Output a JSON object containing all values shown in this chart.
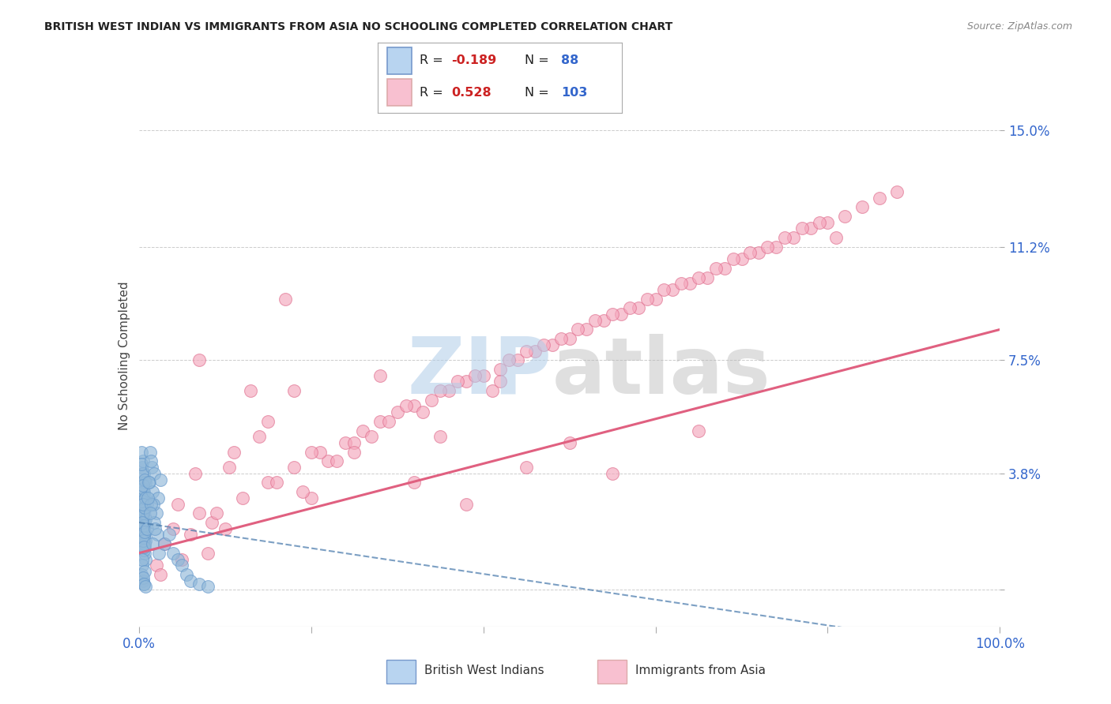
{
  "title": "BRITISH WEST INDIAN VS IMMIGRANTS FROM ASIA NO SCHOOLING COMPLETED CORRELATION CHART",
  "source": "Source: ZipAtlas.com",
  "ylabel": "No Schooling Completed",
  "xlim": [
    0,
    100
  ],
  "ylim": [
    -1.2,
    16.5
  ],
  "yticks": [
    0,
    3.8,
    7.5,
    11.2,
    15.0
  ],
  "xticks": [
    0,
    20,
    40,
    60,
    80,
    100
  ],
  "xtick_labels": [
    "0.0%",
    "",
    "",
    "",
    "",
    "100.0%"
  ],
  "ytick_labels": [
    "",
    "3.8%",
    "7.5%",
    "11.2%",
    "15.0%"
  ],
  "series1_label": "British West Indians",
  "series1_color": "#92b9d9",
  "series1_edge": "#6699cc",
  "series2_label": "Immigrants from Asia",
  "series2_color": "#f4a7bc",
  "series2_edge": "#e07090",
  "trend1_color": "#4477aa",
  "trend2_color": "#e06080",
  "watermark_zip_color": "#b0cce8",
  "watermark_atlas_color": "#b8b8b8",
  "background_color": "#ffffff",
  "title_color": "#222222",
  "axis_label_color": "#444444",
  "tick_label_color": "#3366cc",
  "grid_color": "#cccccc",
  "legend_box_color1": "#b8d4f0",
  "legend_box_color2": "#f8c0d0",
  "legend_R1_color": "#cc2222",
  "legend_R2_color": "#cc2222",
  "legend_N_color": "#3366cc",
  "series1_x": [
    0.3,
    0.5,
    0.4,
    0.6,
    0.8,
    0.5,
    0.7,
    0.4,
    0.6,
    0.9,
    0.5,
    0.3,
    0.7,
    0.6,
    0.4,
    0.8,
    0.5,
    0.6,
    0.4,
    0.7,
    0.5,
    0.6,
    0.8,
    0.4,
    0.6,
    0.5,
    0.7,
    0.3,
    0.5,
    0.6,
    0.4,
    0.7,
    0.5,
    0.6,
    0.8,
    0.4,
    0.5,
    0.6,
    0.7,
    0.4,
    0.5,
    0.6,
    0.3,
    0.7,
    0.5,
    0.4,
    0.6,
    0.8,
    0.5,
    0.7,
    1.2,
    1.5,
    1.8,
    2.0,
    1.3,
    1.6,
    2.2,
    1.4,
    1.7,
    2.5,
    0.9,
    1.1,
    1.4,
    1.8,
    2.1,
    1.0,
    1.3,
    1.6,
    1.9,
    2.3,
    3.0,
    3.5,
    4.0,
    4.5,
    5.0,
    5.5,
    6.0,
    7.0,
    8.0,
    0.4,
    0.3,
    0.5,
    0.6,
    0.4,
    0.7,
    0.5,
    0.6,
    0.8
  ],
  "series1_y": [
    1.5,
    2.0,
    2.5,
    3.0,
    1.0,
    3.5,
    2.2,
    4.0,
    1.8,
    2.8,
    3.2,
    2.6,
    1.2,
    3.8,
    2.4,
    1.6,
    4.2,
    2.0,
    3.0,
    1.4,
    2.8,
    1.8,
    3.5,
    2.2,
    2.6,
    3.0,
    1.5,
    4.5,
    2.4,
    3.2,
    1.9,
    2.7,
    3.3,
    1.7,
    2.3,
    3.8,
    2.5,
    1.3,
    3.6,
    2.9,
    1.6,
    2.1,
    4.1,
    2.7,
    3.4,
    2.2,
    1.4,
    3.0,
    2.8,
    1.9,
    3.5,
    4.0,
    3.8,
    2.5,
    4.5,
    3.2,
    3.0,
    4.2,
    2.8,
    3.6,
    2.0,
    3.5,
    2.8,
    2.2,
    1.8,
    3.0,
    2.5,
    1.5,
    2.0,
    1.2,
    1.5,
    1.8,
    1.2,
    1.0,
    0.8,
    0.5,
    0.3,
    0.2,
    0.1,
    0.8,
    0.5,
    0.3,
    0.2,
    1.0,
    0.6,
    0.4,
    0.2,
    0.1
  ],
  "series2_x": [
    2.0,
    5.0,
    3.0,
    8.0,
    4.0,
    6.0,
    2.5,
    7.0,
    10.0,
    4.5,
    12.0,
    8.5,
    15.0,
    6.5,
    18.0,
    9.0,
    20.0,
    11.0,
    14.0,
    22.0,
    7.0,
    16.0,
    24.0,
    13.0,
    26.0,
    19.0,
    28.0,
    10.5,
    21.0,
    30.0,
    17.0,
    23.0,
    32.0,
    25.0,
    34.0,
    27.0,
    36.0,
    29.0,
    38.0,
    31.0,
    40.0,
    33.0,
    42.0,
    35.0,
    44.0,
    37.0,
    46.0,
    39.0,
    48.0,
    41.0,
    50.0,
    43.0,
    52.0,
    45.0,
    54.0,
    47.0,
    56.0,
    49.0,
    58.0,
    51.0,
    60.0,
    53.0,
    62.0,
    55.0,
    64.0,
    57.0,
    66.0,
    59.0,
    68.0,
    61.0,
    70.0,
    63.0,
    72.0,
    65.0,
    74.0,
    67.0,
    76.0,
    69.0,
    78.0,
    71.0,
    80.0,
    73.0,
    82.0,
    75.0,
    84.0,
    77.0,
    86.0,
    79.0,
    88.0,
    81.0,
    32.0,
    38.0,
    20.0,
    45.0,
    55.0,
    15.0,
    25.0,
    35.0,
    50.0,
    65.0,
    28.0,
    42.0,
    18.0
  ],
  "series2_y": [
    0.8,
    1.0,
    1.5,
    1.2,
    2.0,
    1.8,
    0.5,
    2.5,
    2.0,
    2.8,
    3.0,
    2.2,
    3.5,
    3.8,
    4.0,
    2.5,
    3.0,
    4.5,
    5.0,
    4.2,
    7.5,
    3.5,
    4.8,
    6.5,
    5.2,
    3.2,
    5.5,
    4.0,
    4.5,
    5.8,
    9.5,
    4.2,
    6.0,
    4.8,
    6.2,
    5.0,
    6.5,
    5.5,
    6.8,
    6.0,
    7.0,
    5.8,
    7.2,
    6.5,
    7.5,
    6.8,
    7.8,
    7.0,
    8.0,
    6.5,
    8.2,
    7.5,
    8.5,
    7.8,
    8.8,
    8.0,
    9.0,
    8.2,
    9.2,
    8.5,
    9.5,
    8.8,
    9.8,
    9.0,
    10.0,
    9.2,
    10.2,
    9.5,
    10.5,
    9.8,
    10.8,
    10.0,
    11.0,
    10.2,
    11.2,
    10.5,
    11.5,
    10.8,
    11.8,
    11.0,
    12.0,
    11.2,
    12.2,
    11.5,
    12.5,
    11.8,
    12.8,
    12.0,
    13.0,
    11.5,
    3.5,
    2.8,
    4.5,
    4.0,
    3.8,
    5.5,
    4.5,
    5.0,
    4.8,
    5.2,
    7.0,
    6.8,
    6.5
  ]
}
